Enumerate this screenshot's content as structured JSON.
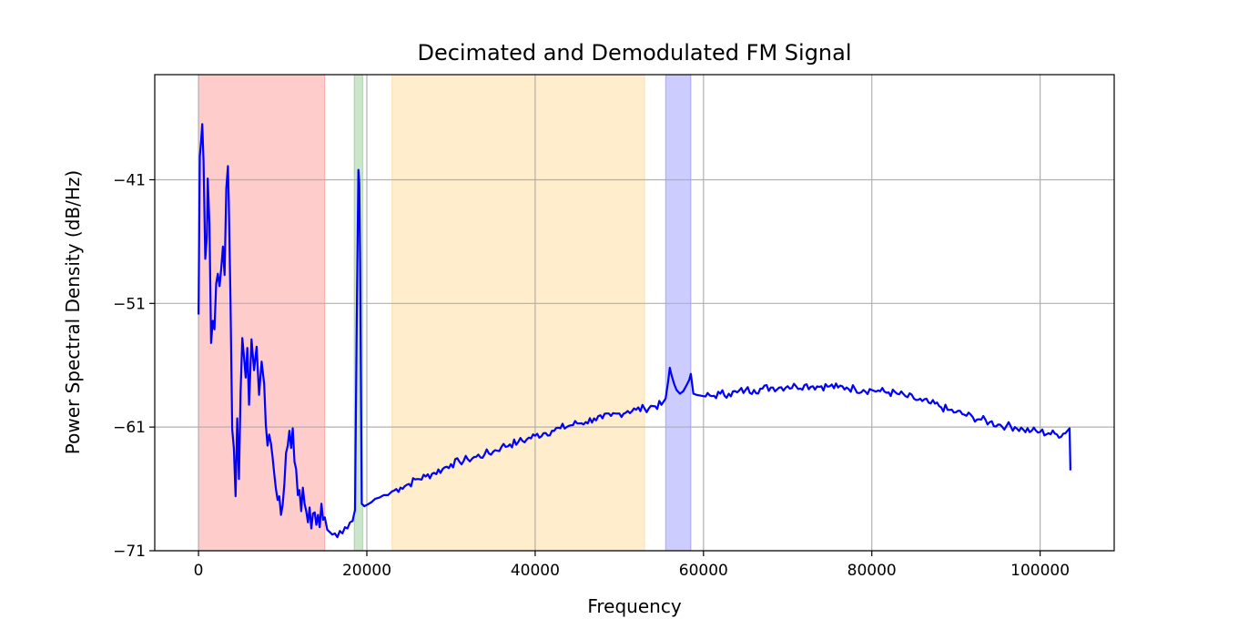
{
  "chart_data": {
    "type": "line",
    "title": "Decimated and Demodulated FM Signal",
    "xlabel": "Frequency",
    "ylabel": "Power Spectral Density (dB/Hz)",
    "xlim": [
      -5200,
      108800
    ],
    "ylim": [
      -71,
      -32.5
    ],
    "x_ticks": [
      {
        "value": 0,
        "label": "0"
      },
      {
        "value": 20000,
        "label": "20000"
      },
      {
        "value": 40000,
        "label": "40000"
      },
      {
        "value": 60000,
        "label": "60000"
      },
      {
        "value": 80000,
        "label": "80000"
      },
      {
        "value": 100000,
        "label": "100000"
      }
    ],
    "y_ticks": [
      {
        "value": -41,
        "label": "−41"
      },
      {
        "value": -51,
        "label": "−51"
      },
      {
        "value": -61,
        "label": "−61"
      },
      {
        "value": -71,
        "label": "−71"
      }
    ],
    "grid": true,
    "bands": [
      {
        "x0": 0,
        "x1": 15000,
        "color": "#ff0000",
        "alpha": 0.2
      },
      {
        "x0": 18500,
        "x1": 19500,
        "color": "#008000",
        "alpha": 0.2
      },
      {
        "x0": 23000,
        "x1": 53000,
        "color": "#ffa500",
        "alpha": 0.2
      },
      {
        "x0": 55500,
        "x1": 58500,
        "color": "#0000ff",
        "alpha": 0.2
      }
    ],
    "series": [
      {
        "color": "#0000ff",
        "points": [
          [
            0,
            -51.9
          ],
          [
            150,
            -39.1
          ],
          [
            300,
            -37.9
          ],
          [
            450,
            -36.5
          ],
          [
            600,
            -39.5
          ],
          [
            800,
            -47.4
          ],
          [
            1000,
            -45.6
          ],
          [
            1100,
            -40.9
          ],
          [
            1300,
            -44.6
          ],
          [
            1500,
            -54.2
          ],
          [
            1700,
            -52.4
          ],
          [
            1900,
            -53.1
          ],
          [
            2100,
            -49.4
          ],
          [
            2300,
            -48.6
          ],
          [
            2500,
            -49.6
          ],
          [
            2700,
            -48.2
          ],
          [
            2900,
            -46.4
          ],
          [
            3100,
            -48.7
          ],
          [
            3300,
            -41.7
          ],
          [
            3500,
            -39.9
          ],
          [
            3600,
            -43.0
          ],
          [
            3800,
            -50.7
          ],
          [
            4000,
            -61.2
          ],
          [
            4200,
            -62.7
          ],
          [
            4400,
            -66.6
          ],
          [
            4600,
            -60.3
          ],
          [
            4800,
            -65.2
          ],
          [
            5000,
            -58.2
          ],
          [
            5200,
            -53.8
          ],
          [
            5400,
            -55.3
          ],
          [
            5600,
            -57.0
          ],
          [
            5800,
            -54.6
          ],
          [
            6000,
            -59.2
          ],
          [
            6300,
            -53.9
          ],
          [
            6600,
            -56.4
          ],
          [
            6900,
            -54.5
          ],
          [
            7200,
            -58.4
          ],
          [
            7500,
            -55.7
          ],
          [
            7800,
            -57.5
          ],
          [
            8000,
            -60.8
          ],
          [
            8200,
            -62.5
          ],
          [
            8400,
            -61.6
          ],
          [
            8600,
            -62.3
          ],
          [
            8800,
            -63.4
          ],
          [
            9000,
            -64.8
          ],
          [
            9200,
            -66.0
          ],
          [
            9400,
            -66.9
          ],
          [
            9600,
            -66.6
          ],
          [
            9800,
            -68.1
          ],
          [
            10000,
            -67.3
          ],
          [
            10200,
            -65.6
          ],
          [
            10400,
            -63.1
          ],
          [
            10600,
            -62.5
          ],
          [
            10800,
            -61.3
          ],
          [
            11000,
            -62.7
          ],
          [
            11200,
            -61.1
          ],
          [
            11400,
            -63.8
          ],
          [
            11600,
            -64.4
          ],
          [
            11800,
            -66.5
          ],
          [
            12000,
            -66.1
          ],
          [
            12200,
            -67.8
          ],
          [
            12400,
            -65.9
          ],
          [
            12600,
            -67.2
          ],
          [
            12800,
            -67.8
          ],
          [
            13000,
            -68.7
          ],
          [
            13200,
            -67.5
          ],
          [
            13400,
            -69.2
          ],
          [
            13600,
            -68.0
          ],
          [
            13800,
            -67.9
          ],
          [
            14000,
            -68.9
          ],
          [
            14200,
            -68.1
          ],
          [
            14400,
            -69.1
          ],
          [
            14600,
            -67.2
          ],
          [
            14800,
            -68.5
          ],
          [
            15000,
            -68.3
          ],
          [
            15300,
            -69.3
          ],
          [
            15600,
            -69.5
          ],
          [
            15900,
            -69.7
          ],
          [
            16200,
            -69.6
          ],
          [
            16500,
            -69.9
          ],
          [
            16800,
            -69.4
          ],
          [
            17100,
            -69.6
          ],
          [
            17400,
            -69.1
          ],
          [
            17700,
            -69.2
          ],
          [
            18000,
            -68.7
          ],
          [
            18300,
            -68.6
          ],
          [
            18600,
            -67.7
          ],
          [
            18800,
            -52.3
          ],
          [
            19000,
            -40.2
          ],
          [
            19100,
            -41.3
          ],
          [
            19200,
            -47.5
          ],
          [
            19400,
            -67.2
          ],
          [
            19700,
            -67.4
          ],
          [
            20000,
            -67.3
          ],
          [
            20500,
            -67.1
          ],
          [
            21000,
            -66.8
          ],
          [
            21500,
            -66.7
          ],
          [
            22000,
            -66.5
          ],
          [
            22500,
            -66.5
          ],
          [
            23000,
            -66.2
          ],
          [
            24000,
            -65.9
          ],
          [
            25000,
            -65.6
          ],
          [
            26000,
            -65.2
          ],
          [
            27000,
            -65.0
          ],
          [
            28000,
            -64.7
          ],
          [
            29000,
            -64.4
          ],
          [
            30000,
            -64.0
          ],
          [
            31000,
            -63.8
          ],
          [
            32000,
            -63.6
          ],
          [
            33000,
            -63.4
          ],
          [
            34000,
            -63.2
          ],
          [
            35000,
            -63.0
          ],
          [
            36000,
            -62.6
          ],
          [
            37000,
            -62.4
          ],
          [
            38000,
            -62.2
          ],
          [
            39000,
            -62.0
          ],
          [
            40000,
            -61.7
          ],
          [
            41000,
            -61.5
          ],
          [
            42000,
            -61.3
          ],
          [
            43000,
            -61.1
          ],
          [
            44000,
            -60.9
          ],
          [
            45000,
            -60.7
          ],
          [
            46000,
            -60.6
          ],
          [
            47000,
            -60.3
          ],
          [
            48000,
            -60.3
          ],
          [
            49000,
            -60.1
          ],
          [
            50000,
            -59.9
          ],
          [
            51000,
            -59.7
          ],
          [
            52000,
            -59.6
          ],
          [
            53000,
            -59.5
          ],
          [
            54000,
            -59.3
          ],
          [
            55000,
            -59.2
          ],
          [
            55500,
            -58.7
          ],
          [
            55800,
            -57.3
          ],
          [
            56000,
            -56.2
          ],
          [
            56200,
            -56.8
          ],
          [
            56500,
            -57.5
          ],
          [
            56800,
            -58.0
          ],
          [
            57200,
            -58.3
          ],
          [
            57600,
            -58.1
          ],
          [
            58000,
            -57.6
          ],
          [
            58300,
            -57.2
          ],
          [
            58500,
            -56.7
          ],
          [
            58800,
            -58.3
          ],
          [
            59200,
            -58.4
          ],
          [
            60000,
            -58.5
          ],
          [
            61000,
            -58.5
          ],
          [
            62000,
            -58.3
          ],
          [
            63000,
            -58.3
          ],
          [
            64000,
            -58.2
          ],
          [
            65000,
            -58.0
          ],
          [
            66000,
            -58.0
          ],
          [
            67000,
            -57.9
          ],
          [
            68000,
            -57.8
          ],
          [
            69000,
            -57.8
          ],
          [
            70000,
            -57.7
          ],
          [
            71000,
            -57.7
          ],
          [
            72000,
            -57.6
          ],
          [
            73000,
            -57.7
          ],
          [
            74000,
            -57.7
          ],
          [
            75000,
            -57.7
          ],
          [
            76000,
            -57.8
          ],
          [
            77000,
            -57.8
          ],
          [
            78000,
            -57.9
          ],
          [
            79000,
            -58.0
          ],
          [
            80000,
            -58.0
          ],
          [
            81000,
            -58.1
          ],
          [
            82000,
            -58.2
          ],
          [
            83000,
            -58.3
          ],
          [
            84000,
            -58.5
          ],
          [
            85000,
            -58.7
          ],
          [
            86000,
            -58.9
          ],
          [
            87000,
            -59.1
          ],
          [
            88000,
            -59.3
          ],
          [
            89000,
            -59.6
          ],
          [
            90000,
            -59.8
          ],
          [
            91000,
            -60.0
          ],
          [
            92000,
            -60.2
          ],
          [
            93000,
            -60.4
          ],
          [
            94000,
            -60.6
          ],
          [
            95000,
            -60.8
          ],
          [
            96000,
            -60.9
          ],
          [
            97000,
            -61.0
          ],
          [
            98000,
            -61.2
          ],
          [
            99000,
            -61.3
          ],
          [
            100000,
            -61.4
          ],
          [
            101000,
            -61.5
          ],
          [
            102000,
            -61.6
          ],
          [
            103000,
            -61.5
          ],
          [
            103500,
            -61.1
          ],
          [
            103600,
            -64.5
          ]
        ]
      }
    ]
  }
}
